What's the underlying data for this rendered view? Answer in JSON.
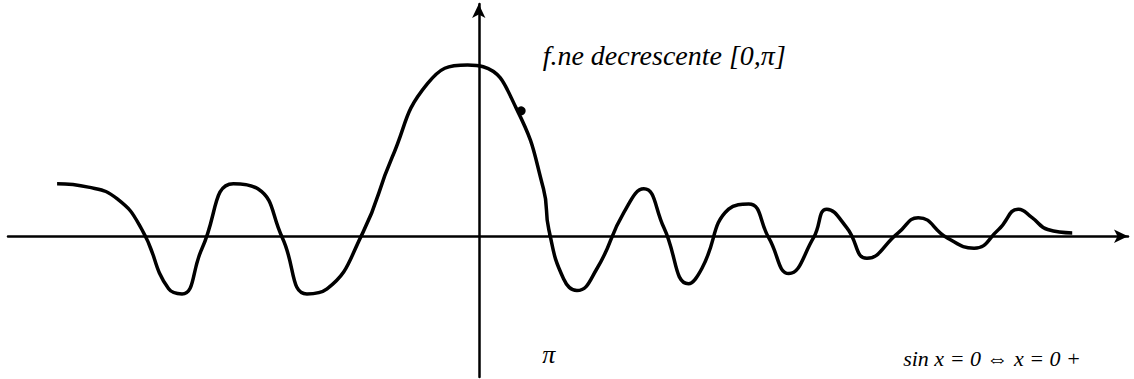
{
  "chart_data": {
    "type": "line",
    "x": [
      -18.9,
      -17.5,
      -16.2,
      -15.1,
      -13.9,
      -13.3,
      -12.4,
      -11.0,
      -9.9,
      -8.8,
      -7.7,
      -6.8,
      -5.2,
      -3.9,
      -2.3,
      -0.5,
      0.2,
      1.7,
      2.9,
      3.14,
      3.8,
      4.4,
      5.3,
      6.5,
      7.4,
      8.3,
      9.4,
      10.0,
      11.2,
      12.1,
      13.0,
      13.9,
      15.0,
      15.6,
      16.5,
      17.4,
      18.8,
      19.7,
      21.0,
      22.2,
      23.3,
      24.2,
      24.8,
      25.5,
      26.6
    ],
    "values": [
      0.31,
      0.29,
      0.22,
      0.04,
      -0.31,
      -0.34,
      -0.07,
      0.31,
      0.28,
      -0.01,
      -0.34,
      -0.31,
      0.02,
      0.46,
      0.9,
      1.01,
      1.0,
      0.75,
      0.28,
      0.04,
      -0.25,
      -0.32,
      -0.19,
      0.14,
      0.28,
      0.05,
      -0.28,
      -0.19,
      0.16,
      0.19,
      -0.01,
      -0.22,
      -0.01,
      0.16,
      0.05,
      -0.13,
      0.02,
      0.11,
      -0.01,
      -0.07,
      0.04,
      0.16,
      0.11,
      0.04,
      0.02
    ],
    "color": "#000000",
    "xlim": [
      -21.1,
      29.1
    ],
    "ylim": [
      -0.83,
      1.37
    ],
    "xticks": [
      {
        "value": 3.14,
        "label": "π"
      }
    ],
    "tick_labels": "x",
    "grid": false,
    "annotations": [
      {
        "text": "f.ne decrescente [0,π]",
        "x": 1.9,
        "y": 0.74
      },
      {
        "text": "sin x = 0 ⇔ x = 0 +",
        "x": 18.8,
        "y": -0.72
      }
    ]
  }
}
